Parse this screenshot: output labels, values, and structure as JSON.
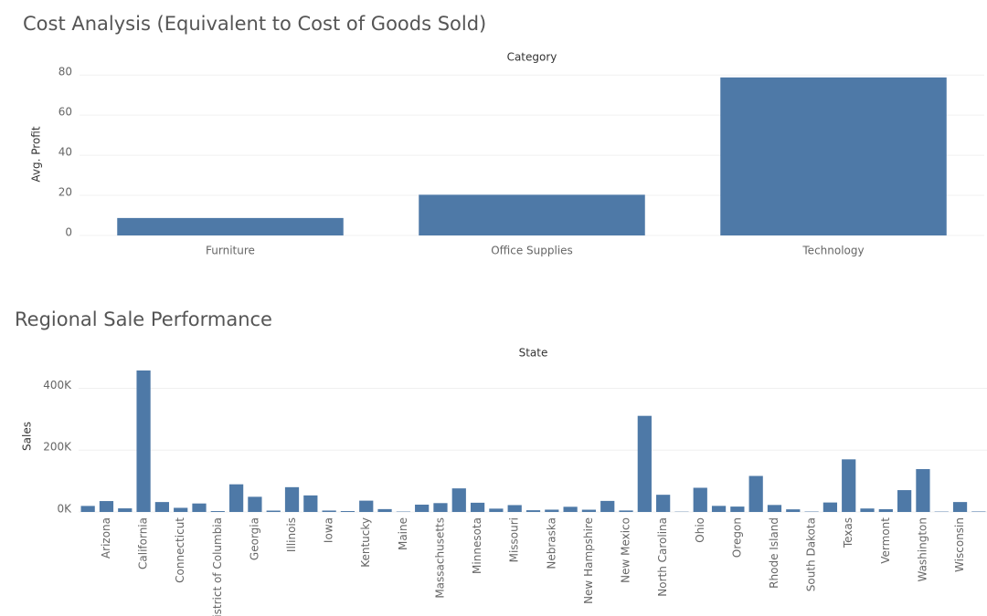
{
  "chart_data": [
    {
      "type": "bar",
      "title": "Cost Analysis (Equivalent to Cost of Goods Sold)",
      "x_label": "Category",
      "y_label": "Avg. Profit",
      "categories": [
        "Furniture",
        "Office Supplies",
        "Technology"
      ],
      "values": [
        8.7,
        20.3,
        78.8
      ],
      "color": "#4e79a7",
      "ylim": [
        0,
        81
      ],
      "yticks": [
        0,
        20,
        40,
        60,
        80
      ],
      "grid": true
    },
    {
      "type": "bar",
      "title": "Regional Sale Performance",
      "x_label": "State",
      "y_label": "Sales",
      "categories": [
        null,
        "Arizona",
        null,
        "California",
        null,
        "Connecticut",
        null,
        "District of Columbia",
        null,
        "Georgia",
        null,
        "Illinois",
        null,
        "Iowa",
        null,
        "Kentucky",
        null,
        "Maine",
        null,
        "Massachusetts",
        null,
        "Minnesota",
        null,
        "Missouri",
        null,
        "Nebraska",
        null,
        "New Hampshire",
        null,
        "New Mexico",
        null,
        "North Carolina",
        null,
        "Ohio",
        null,
        "Oregon",
        null,
        "Rhode Island",
        null,
        "South Dakota",
        null,
        "Texas",
        null,
        "Vermont",
        null,
        "Washington",
        null,
        "Wisconsin",
        null
      ],
      "values": [
        19511,
        35282,
        11678,
        457688,
        32108,
        13384,
        27451,
        2865,
        89474,
        49096,
        4382,
        80166,
        53555,
        4580,
        2914,
        36592,
        9217,
        1271,
        23706,
        28634,
        76270,
        29863,
        10771,
        22205,
        5589,
        7465,
        16729,
        7293,
        35764,
        4784,
        310876,
        55603,
        920,
        78258,
        19683,
        17431,
        116512,
        22628,
        8482,
        1316,
        30662,
        170188,
        11220,
        8929,
        70637,
        138641,
        1210,
        32115,
        1603
      ],
      "color": "#4e79a7",
      "ylim": [
        0,
        490000
      ],
      "yticks": [
        {
          "value": 0,
          "label": "0K"
        },
        {
          "value": 200000,
          "label": "200K"
        },
        {
          "value": 400000,
          "label": "400K"
        }
      ],
      "grid": true
    }
  ]
}
